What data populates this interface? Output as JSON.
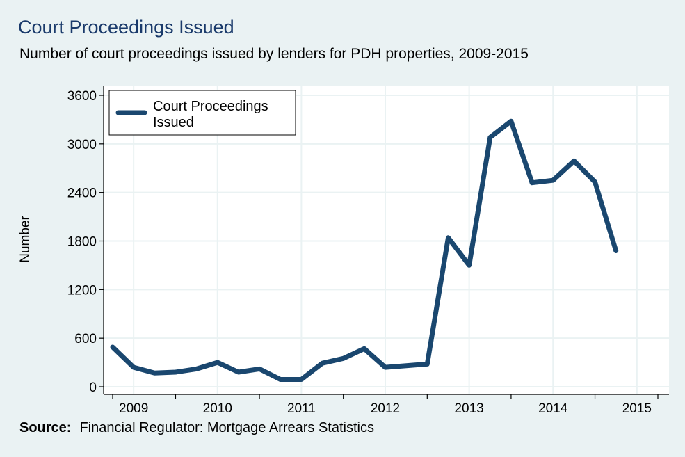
{
  "colors": {
    "background": "#eaf2f3",
    "plot_background": "#ffffff",
    "grid": "#eaf2f3",
    "series_line": "#1a476f",
    "title": "#1a3a6b"
  },
  "header": {
    "title": "Court Proceedings Issued",
    "subtitle": "Number of court proceedings issued by lenders for PDH properties, 2009-2015"
  },
  "footer": {
    "source_label": "Source:",
    "source_text": "Financial Regulator: Mortgage Arrears Statistics"
  },
  "chart_data": {
    "type": "line",
    "title": "Court Proceedings Issued",
    "subtitle": "Number of court proceedings issued by lenders for PDH properties, 2009-2015",
    "xlabel": "",
    "ylabel": "Number",
    "ylim": [
      0,
      3600
    ],
    "yticks": [
      0,
      600,
      1200,
      1800,
      2400,
      3000,
      3600
    ],
    "xlim": [
      2009.25,
      2015.75
    ],
    "x_tick_labels": [
      {
        "x": 2009.5,
        "label": "2009"
      },
      {
        "x": 2010.5,
        "label": "2010"
      },
      {
        "x": 2011.5,
        "label": "2011"
      },
      {
        "x": 2012.5,
        "label": "2012"
      },
      {
        "x": 2013.5,
        "label": "2013"
      },
      {
        "x": 2014.5,
        "label": "2014"
      },
      {
        "x": 2015.5,
        "label": "2015"
      }
    ],
    "x_minor_ticks": [
      2009.25,
      2010,
      2011,
      2012,
      2013,
      2014,
      2015,
      2015.75
    ],
    "grid": true,
    "legend": {
      "position": "top-left",
      "entries": [
        "Court Proceedings Issued"
      ],
      "lines": [
        "Court Proceedings",
        "Issued"
      ]
    },
    "series": [
      {
        "name": "Court Proceedings Issued",
        "x": [
          2009.25,
          2009.5,
          2009.75,
          2010,
          2010.25,
          2010.5,
          2010.75,
          2011,
          2011.25,
          2011.5,
          2011.75,
          2012,
          2012.25,
          2012.5,
          2012.75,
          2013,
          2013.25,
          2013.5,
          2013.75,
          2014,
          2014.25,
          2014.5,
          2014.75,
          2015,
          2015.25
        ],
        "values": [
          490,
          240,
          170,
          180,
          220,
          300,
          180,
          220,
          90,
          90,
          290,
          350,
          470,
          240,
          260,
          280,
          1840,
          1500,
          3080,
          3280,
          2520,
          2550,
          2790,
          2530,
          1680
        ]
      }
    ]
  }
}
